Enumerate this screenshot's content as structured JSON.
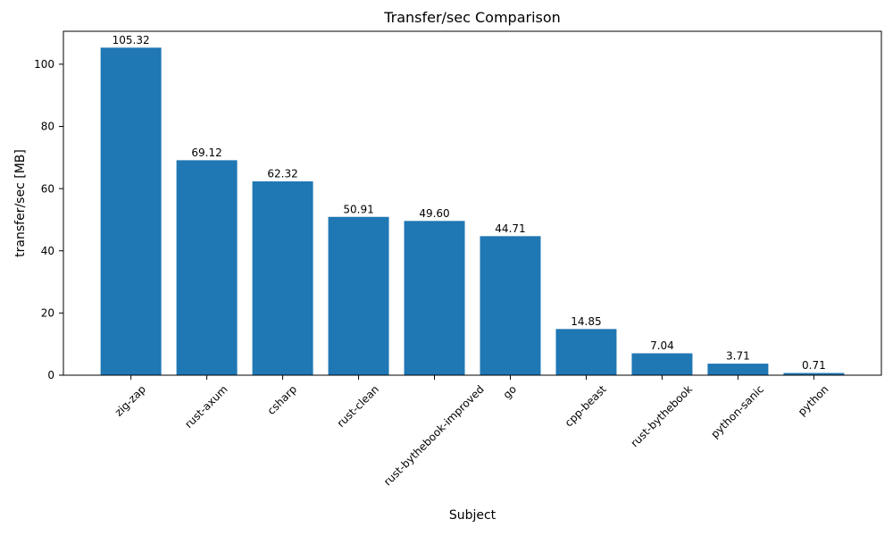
{
  "figure": {
    "background": "#ffffff"
  },
  "chart_data": {
    "type": "bar",
    "title": "Transfer/sec Comparison",
    "xlabel": "Subject",
    "ylabel": "transfer/sec [MB]",
    "categories": [
      "zig-zap",
      "rust-axum",
      "csharp",
      "rust-clean",
      "rust-bythebook-improved",
      "go",
      "cpp-beast",
      "rust-bythebook",
      "python-sanic",
      "python"
    ],
    "values": [
      105.32,
      69.12,
      62.32,
      50.91,
      49.6,
      44.71,
      14.85,
      7.04,
      3.71,
      0.71
    ],
    "bar_labels": [
      "105.32",
      "69.12",
      "62.32",
      "50.91",
      "49.60",
      "44.71",
      "14.85",
      "7.04",
      "3.71",
      "0.71"
    ],
    "yticks": [
      0,
      20,
      40,
      60,
      80,
      100
    ],
    "ylim": [
      0,
      110.59
    ],
    "xtick_rotation_deg": 45,
    "grid": false,
    "legend": "none",
    "bar_color": "#1f77b4",
    "axis_color": "#000000",
    "text_color": "#000000"
  }
}
